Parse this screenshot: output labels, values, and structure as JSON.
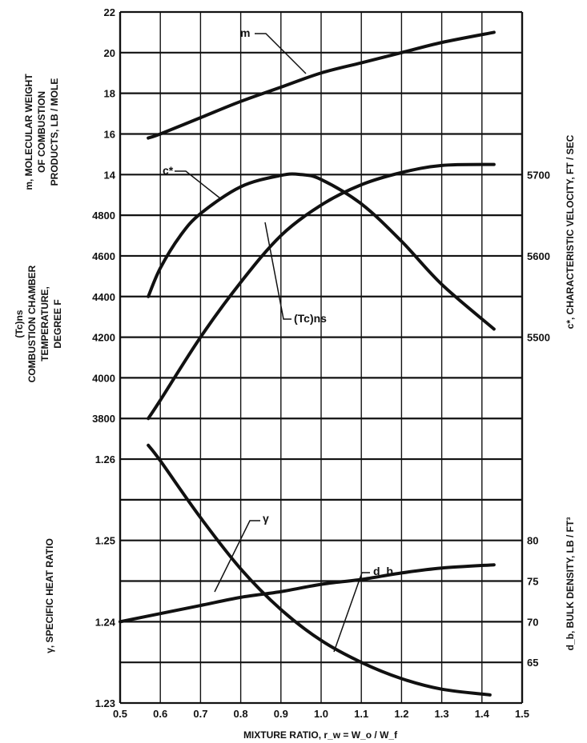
{
  "chart_data": {
    "type": "line",
    "title": "",
    "xlabel": "MIXTURE RATIO, r_w = W_o / W_f",
    "xlim": [
      0.5,
      1.5
    ],
    "x_ticks": [
      "0.5",
      "0.6",
      "0.7",
      "0.8",
      "0.9",
      "1.0",
      "1.1",
      "1.2",
      "1.3",
      "1.4",
      "1.5"
    ],
    "grid": true,
    "axes": {
      "m": {
        "label_lines": [
          "m, MOLECULAR WEIGHT",
          "OF COMBUSTION",
          "PRODUCTS, LB / MOLE"
        ],
        "side": "left",
        "ticks": [
          "22",
          "20",
          "18",
          "16",
          "14"
        ]
      },
      "tc": {
        "label_lines": [
          "(Tc)ns",
          "COMBUSTION CHAMBER",
          "TEMPERATURE,",
          "DEGREE F"
        ],
        "side": "left",
        "ticks": [
          "4800",
          "4600",
          "4400",
          "4200",
          "4000",
          "3800"
        ]
      },
      "gamma": {
        "label_lines": [
          "γ, SPECIFIC HEAT RATIO"
        ],
        "side": "left",
        "ticks": [
          "1.26",
          "1.25",
          "1.24",
          "1.23"
        ]
      },
      "cstar": {
        "label_lines": [
          "c*, CHARACTERISTIC VELOCITY, FT / SEC"
        ],
        "side": "right",
        "ticks": [
          "5700",
          "5600",
          "5500"
        ]
      },
      "db": {
        "label_lines": [
          "d_b, BULK DENSITY, LB / FT³"
        ],
        "side": "right",
        "ticks": [
          "80",
          "75",
          "70",
          "65"
        ]
      }
    },
    "series": [
      {
        "name": "m",
        "label": "m",
        "axis": "m",
        "x": [
          0.57,
          0.6,
          0.7,
          0.8,
          0.9,
          1.0,
          1.1,
          1.2,
          1.3,
          1.43
        ],
        "y": [
          15.8,
          16.0,
          16.8,
          17.6,
          18.3,
          19.0,
          19.5,
          20.0,
          20.5,
          21.0
        ]
      },
      {
        "name": "c*",
        "label": "c*",
        "axis": "cstar",
        "x": [
          0.57,
          0.6,
          0.65,
          0.7,
          0.8,
          0.9,
          0.95,
          1.0,
          1.1,
          1.2,
          1.3,
          1.43
        ],
        "y": [
          5550,
          5585,
          5625,
          5652,
          5685,
          5699,
          5700,
          5694,
          5664,
          5618,
          5565,
          5510
        ]
      },
      {
        "name": "(Tc)ns",
        "label": "(Tc)ns",
        "axis": "tc",
        "x": [
          0.57,
          0.6,
          0.7,
          0.8,
          0.9,
          1.0,
          1.1,
          1.2,
          1.3,
          1.43
        ],
        "y": [
          3800,
          3890,
          4200,
          4470,
          4700,
          4850,
          4950,
          5010,
          5045,
          5050
        ]
      },
      {
        "name": "γ",
        "label": "γ",
        "axis": "gamma",
        "x": [
          0.57,
          0.6,
          0.7,
          0.8,
          0.9,
          1.0,
          1.1,
          1.2,
          1.3,
          1.42
        ],
        "y": [
          1.2617,
          1.2598,
          1.2528,
          1.2465,
          1.2415,
          1.2377,
          1.235,
          1.233,
          1.2317,
          1.231
        ]
      },
      {
        "name": "d_b",
        "label": "d_b",
        "axis": "db",
        "x": [
          0.5,
          0.6,
          0.7,
          0.8,
          0.9,
          1.0,
          1.1,
          1.2,
          1.3,
          1.43
        ],
        "y": [
          70.0,
          71.0,
          72.0,
          73.0,
          73.7,
          74.6,
          75.2,
          76.0,
          76.6,
          77.0
        ]
      }
    ]
  }
}
